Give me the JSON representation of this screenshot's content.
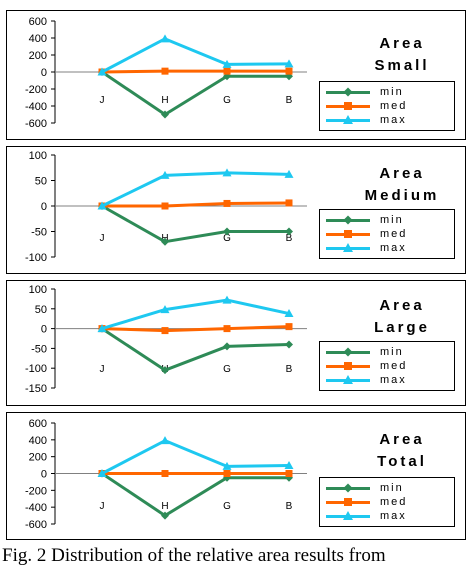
{
  "caption": "Fig. 2 Distribution of the relative area results from",
  "colors": {
    "min": "#2e8b57",
    "med": "#ff6600",
    "max": "#1ec8f0",
    "axis": "#000000",
    "zero": "#808080"
  },
  "chart_data": [
    {
      "type": "line",
      "title": [
        "Area",
        "Small"
      ],
      "categories": [
        "J",
        "H",
        "G",
        "B"
      ],
      "ylim": [
        -600,
        600
      ],
      "yticks": [
        600,
        400,
        200,
        0,
        -200,
        -400,
        -600
      ],
      "grid": false,
      "legend": "right",
      "series": [
        {
          "name": "min",
          "values": [
            0,
            -500,
            -50,
            -50
          ]
        },
        {
          "name": "med",
          "values": [
            0,
            10,
            10,
            10
          ]
        },
        {
          "name": "max",
          "values": [
            0,
            390,
            90,
            95
          ]
        }
      ]
    },
    {
      "type": "line",
      "title": [
        "Area",
        "Medium"
      ],
      "categories": [
        "J",
        "H",
        "G",
        "B"
      ],
      "ylim": [
        -100,
        100
      ],
      "yticks": [
        100,
        50,
        0,
        -50,
        -100
      ],
      "grid": false,
      "legend": "right",
      "series": [
        {
          "name": "min",
          "values": [
            0,
            -70,
            -50,
            -50
          ]
        },
        {
          "name": "med",
          "values": [
            0,
            0,
            5,
            6
          ]
        },
        {
          "name": "max",
          "values": [
            0,
            60,
            65,
            62
          ]
        }
      ]
    },
    {
      "type": "line",
      "title": [
        "Area",
        "Large"
      ],
      "categories": [
        "J",
        "H",
        "G",
        "B"
      ],
      "ylim": [
        -150,
        100
      ],
      "yticks": [
        100,
        50,
        0,
        -50,
        -100,
        -150
      ],
      "grid": false,
      "legend": "right",
      "series": [
        {
          "name": "min",
          "values": [
            0,
            -105,
            -45,
            -40
          ]
        },
        {
          "name": "med",
          "values": [
            0,
            -5,
            0,
            5
          ]
        },
        {
          "name": "max",
          "values": [
            0,
            48,
            72,
            38
          ]
        }
      ]
    },
    {
      "type": "line",
      "title": [
        "Area",
        "Total"
      ],
      "categories": [
        "J",
        "H",
        "G",
        "B"
      ],
      "ylim": [
        -600,
        600
      ],
      "yticks": [
        600,
        400,
        200,
        0,
        -200,
        -400,
        -600
      ],
      "grid": false,
      "legend": "right",
      "series": [
        {
          "name": "min",
          "values": [
            0,
            -500,
            -50,
            -50
          ]
        },
        {
          "name": "med",
          "values": [
            0,
            0,
            0,
            0
          ]
        },
        {
          "name": "max",
          "values": [
            0,
            390,
            85,
            95
          ]
        }
      ]
    }
  ]
}
